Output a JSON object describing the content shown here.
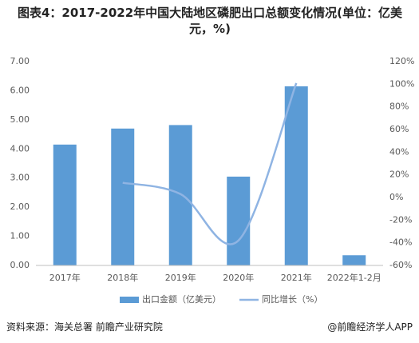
{
  "chart_data": {
    "type": "bar",
    "title": "图表4：2017-2022年中国大陆地区磷肥出口总额变化情况(单位：亿美元，%)",
    "categories": [
      "2017年",
      "2018年",
      "2019年",
      "2020年",
      "2021年",
      "2022年1-2月"
    ],
    "series": [
      {
        "name": "出口金额（亿美元）",
        "type": "bar",
        "color": "#5b9bd5",
        "values": [
          4.15,
          4.7,
          4.82,
          3.05,
          6.15,
          0.35
        ]
      },
      {
        "name": "同比增长（%）",
        "type": "line",
        "axis": "y2",
        "color": "#8fb4e3",
        "values": [
          null,
          13,
          3,
          -38,
          101,
          null
        ]
      }
    ],
    "ylim": [
      0,
      7
    ],
    "yticks": [
      {
        "value": 0,
        "label": "0.00"
      },
      {
        "value": 1,
        "label": "1.00"
      },
      {
        "value": 2,
        "label": "2.00"
      },
      {
        "value": 3,
        "label": "3.00"
      },
      {
        "value": 4,
        "label": "4.00"
      },
      {
        "value": 5,
        "label": "5.00"
      },
      {
        "value": 6,
        "label": "6.00"
      },
      {
        "value": 7,
        "label": "7.00"
      }
    ],
    "y2lim": [
      -60,
      120
    ],
    "y2ticks": [
      {
        "value": -60,
        "label": "-60%"
      },
      {
        "value": -40,
        "label": "-40%"
      },
      {
        "value": -20,
        "label": "-20%"
      },
      {
        "value": 0,
        "label": "0%"
      },
      {
        "value": 20,
        "label": "20%"
      },
      {
        "value": 40,
        "label": "40%"
      },
      {
        "value": 60,
        "label": "60%"
      },
      {
        "value": 80,
        "label": "80%"
      },
      {
        "value": 100,
        "label": "100%"
      },
      {
        "value": 120,
        "label": "120%"
      }
    ],
    "grid": false,
    "source": "资料来源：海关总署 前瞻产业研究院",
    "credit": "@前瞻经济学人APP"
  }
}
